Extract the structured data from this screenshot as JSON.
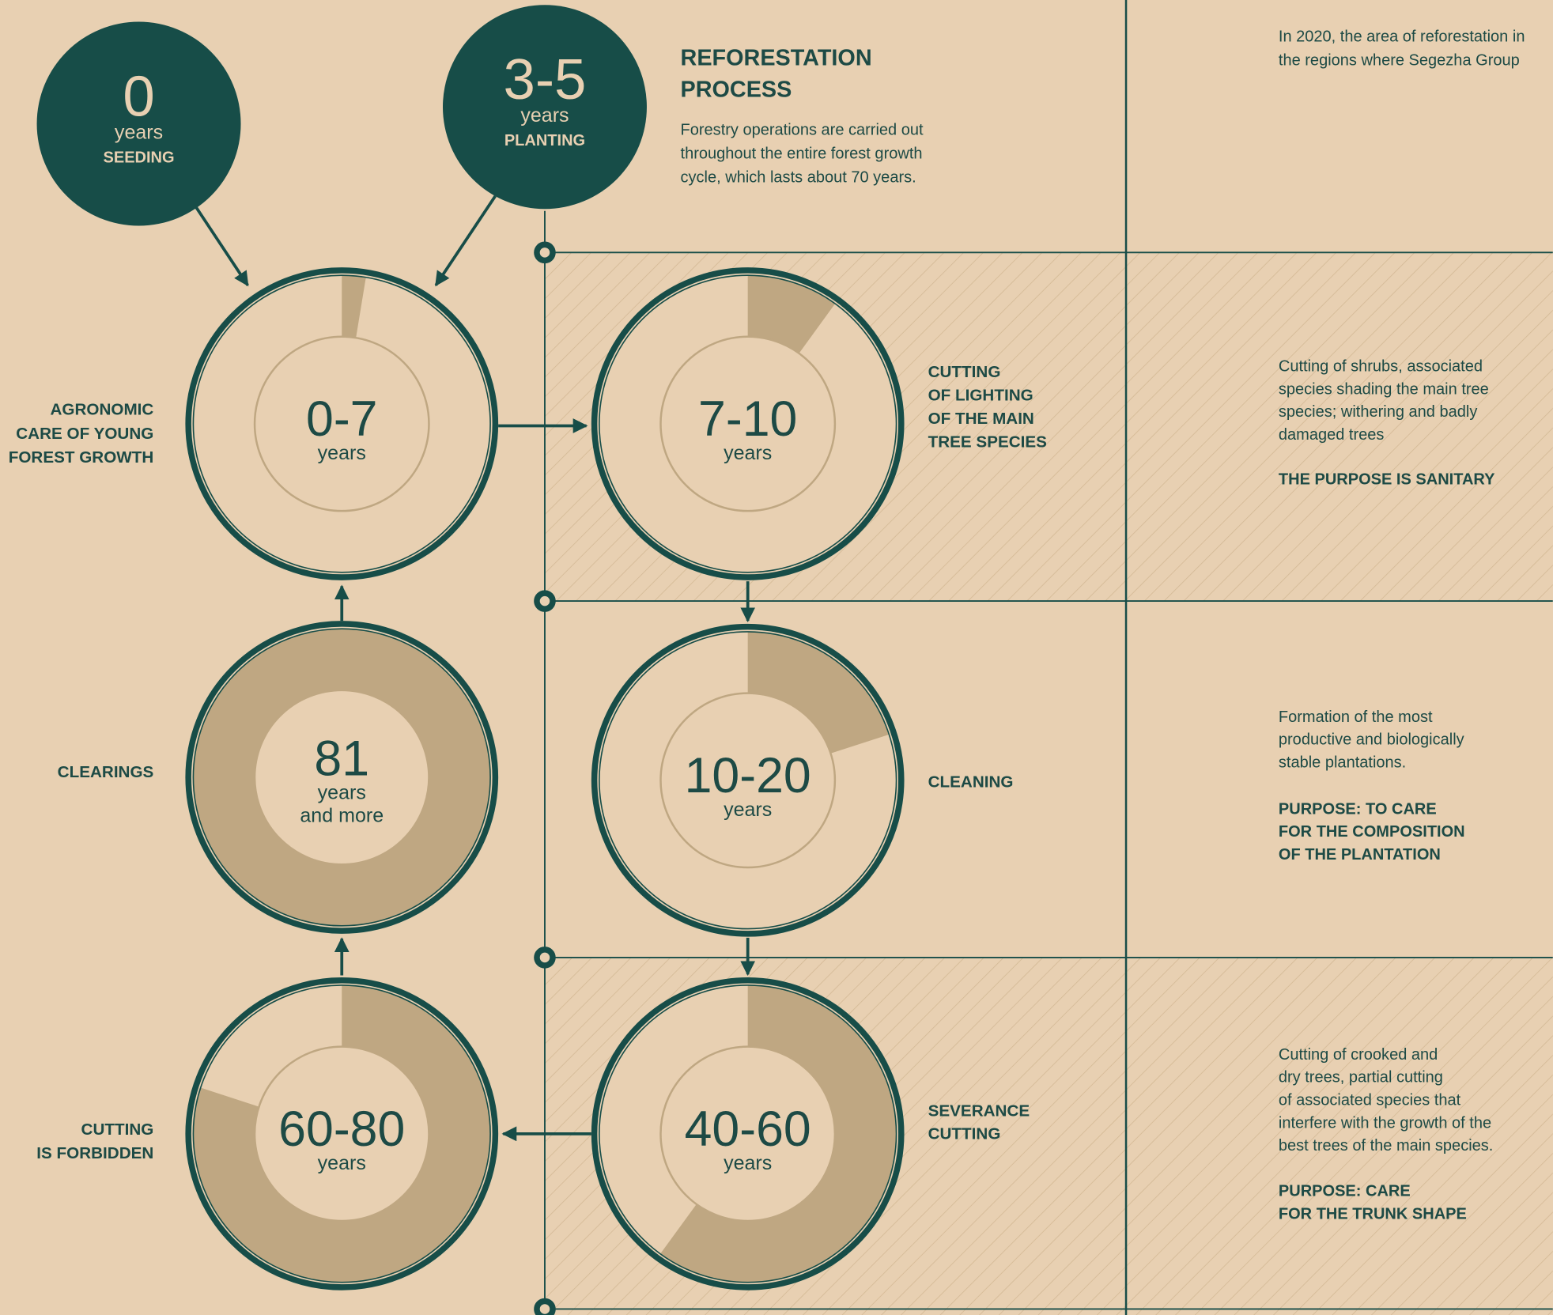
{
  "header": {
    "title": [
      "REFORESTATION",
      "PROCESS"
    ],
    "intro": [
      "Forestry operations are carried out",
      "throughout the entire forest growth",
      "cycle, which lasts about 70 years."
    ]
  },
  "note": [
    "In 2020, the area of reforestation in",
    "the regions where Segezha Group"
  ],
  "starts": [
    {
      "number": "0",
      "unit": "years",
      "label": "SEEDING"
    },
    {
      "number": "3-5",
      "unit": "years",
      "label": "PLANTING"
    }
  ],
  "stages": [
    {
      "range": "0-7",
      "unit": [
        "years"
      ],
      "label": [
        "AGRONOMIC",
        "CARE OF YOUNG",
        "FOREST GROWTH"
      ]
    },
    {
      "range": "7-10",
      "unit": [
        "years"
      ],
      "label": [
        "CUTTING",
        "OF LIGHTING",
        "OF THE MAIN",
        "TREE SPECIES"
      ],
      "description": [
        "Cutting of shrubs, associated",
        "species shading the main tree",
        "species; withering and badly",
        "damaged trees"
      ],
      "purpose": [
        "THE PURPOSE IS SANITARY"
      ]
    },
    {
      "range": "10-20",
      "unit": [
        "years"
      ],
      "label": [
        "CLEANING"
      ],
      "description": [
        "Formation of the most",
        "productive and biologically",
        "stable plantations."
      ],
      "purpose": [
        "PURPOSE: TO CARE",
        "FOR THE COMPOSITION",
        "OF THE PLANTATION"
      ]
    },
    {
      "range": "40-60",
      "unit": [
        "years"
      ],
      "label": [
        "SEVERANCE",
        "CUTTING"
      ],
      "description": [
        "Cutting of crooked and",
        "dry trees, partial cutting",
        "of associated species that",
        "interfere with the growth of the",
        "best trees of the main species."
      ],
      "purpose": [
        "PURPOSE: CARE",
        "FOR THE TRUNK SHAPE"
      ]
    },
    {
      "range": "60-80",
      "unit": [
        "years"
      ],
      "label": [
        "CUTTING",
        "IS FORBIDDEN"
      ]
    },
    {
      "range": "81",
      "unit": [
        "years",
        "and more"
      ],
      "label": [
        "CLEARINGS"
      ]
    }
  ]
}
